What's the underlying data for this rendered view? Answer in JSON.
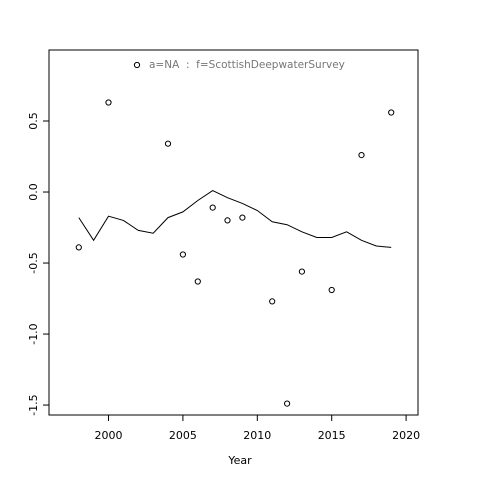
{
  "chart_data": {
    "type": "scatter",
    "xlabel": "Year",
    "ylabel": "",
    "xlim": [
      1996.0,
      2020.8
    ],
    "ylim": [
      -1.57,
      1.0
    ],
    "xticks": [
      2000,
      2005,
      2010,
      2015,
      2020
    ],
    "yticks": [
      0.5,
      0.0,
      -0.5,
      -1.0,
      -1.5
    ],
    "xtick_labels": [
      "2000",
      "2005",
      "2010",
      "2015",
      "2020"
    ],
    "ytick_labels": [
      "0.5",
      "0.0",
      "-0.5",
      "-1.0",
      "-1.5"
    ],
    "legend": {
      "position": "top-center",
      "label": "a=NA  :  f=ScottishDeepwaterSurvey"
    },
    "grid": false,
    "series": [
      {
        "kind": "points",
        "x": [
          1998,
          2000,
          2004,
          2005,
          2006,
          2007,
          2008,
          2009,
          2011,
          2012,
          2013,
          2015,
          2017,
          2019
        ],
        "y": [
          -0.39,
          0.63,
          0.34,
          -0.44,
          -0.63,
          -0.11,
          -0.2,
          -0.18,
          -0.77,
          -1.49,
          -0.56,
          -0.69,
          0.26,
          0.56
        ]
      },
      {
        "kind": "line",
        "x": [
          1998,
          1999,
          2000,
          2001,
          2002,
          2003,
          2004,
          2005,
          2006,
          2007,
          2008,
          2009,
          2010,
          2011,
          2012,
          2013,
          2014,
          2015,
          2016,
          2017,
          2018,
          2019
        ],
        "y": [
          -0.18,
          -0.34,
          -0.17,
          -0.2,
          -0.27,
          -0.29,
          -0.18,
          -0.14,
          -0.06,
          0.01,
          -0.04,
          -0.08,
          -0.13,
          -0.21,
          -0.23,
          -0.28,
          -0.32,
          -0.32,
          -0.28,
          -0.34,
          -0.38,
          -0.39
        ]
      }
    ]
  }
}
